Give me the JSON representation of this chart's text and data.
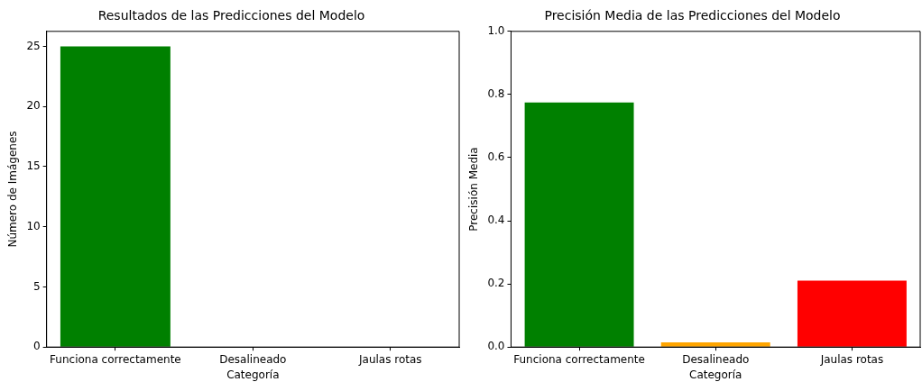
{
  "chart_data": [
    {
      "type": "bar",
      "title": "Resultados de las Predicciones del Modelo",
      "xlabel": "Categoría",
      "ylabel": "Número de Imágenes",
      "categories": [
        "Funciona correctamente",
        "Desalineado",
        "Jaulas rotas"
      ],
      "values": [
        25,
        0,
        0
      ],
      "colors": [
        "#008000",
        "#ffa500",
        "#ff0000"
      ],
      "ylim": [
        0,
        26.25
      ],
      "yticks": [
        0,
        5,
        10,
        15,
        20,
        25
      ],
      "grid": false,
      "legend": false
    },
    {
      "type": "bar",
      "title": "Precisión Media de las Predicciones del Modelo",
      "xlabel": "Categoría",
      "ylabel": "Precisión Media",
      "categories": [
        "Funciona correctamente",
        "Desalineado",
        "Jaulas rotas"
      ],
      "values": [
        0.775,
        0.015,
        0.21
      ],
      "colors": [
        "#008000",
        "#ffa500",
        "#ff0000"
      ],
      "ylim": [
        0,
        1
      ],
      "yticks": [
        {
          "value": 0,
          "label": "0.0"
        },
        {
          "value": 0.2,
          "label": "0.2"
        },
        {
          "value": 0.4,
          "label": "0.4"
        },
        {
          "value": 0.6,
          "label": "0.6"
        },
        {
          "value": 0.8,
          "label": "0.8"
        },
        {
          "value": 1,
          "label": "1.0"
        }
      ],
      "grid": false,
      "legend": false
    }
  ]
}
